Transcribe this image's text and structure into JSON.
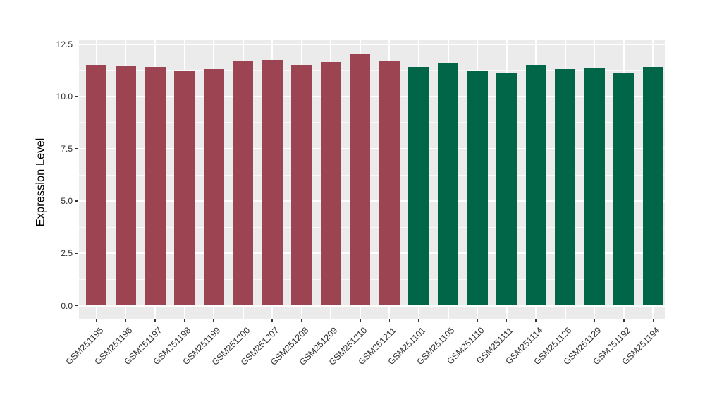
{
  "figure": {
    "background": "#ffffff",
    "panel_background": "#EBEBEB",
    "gridline_color": "#ffffff",
    "axis_text_color": "#303030"
  },
  "y_axis": {
    "title": "Expression Level",
    "tick_labels": [
      "0.0",
      "2.5",
      "5.0",
      "7.5",
      "10.0",
      "12.5"
    ],
    "tick_values": [
      0,
      2.5,
      5,
      7.5,
      10,
      12.5
    ],
    "minor_tick_values": [
      1.25,
      3.75,
      6.25,
      8.75,
      11.25
    ]
  },
  "chart_data": {
    "type": "bar",
    "title": "",
    "xlabel": "",
    "ylabel": "Expression Level",
    "ylim": [
      0,
      12.65
    ],
    "grid": true,
    "legend": false,
    "categories": [
      "GSM251195",
      "GSM251196",
      "GSM251197",
      "GSM251198",
      "GSM251199",
      "GSM251200",
      "GSM251207",
      "GSM251208",
      "GSM251209",
      "GSM251210",
      "GSM251211",
      "GSM251101",
      "GSM251105",
      "GSM251110",
      "GSM251111",
      "GSM251114",
      "GSM251126",
      "GSM251129",
      "GSM251192",
      "GSM251194"
    ],
    "values": [
      11.5,
      11.45,
      11.4,
      11.2,
      11.3,
      11.7,
      11.75,
      11.5,
      11.65,
      12.05,
      11.7,
      11.4,
      11.6,
      11.2,
      11.15,
      11.5,
      11.3,
      11.35,
      11.15,
      11.4
    ],
    "groups": [
      "red",
      "red",
      "red",
      "red",
      "red",
      "red",
      "red",
      "red",
      "red",
      "red",
      "red",
      "green",
      "green",
      "green",
      "green",
      "green",
      "green",
      "green",
      "green",
      "green"
    ],
    "group_colors": {
      "red": "#9C4452",
      "green": "#006647"
    }
  }
}
